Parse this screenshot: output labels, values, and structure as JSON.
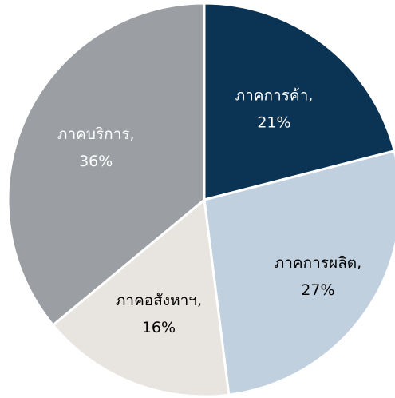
{
  "chart_data": {
    "type": "pie",
    "title": "",
    "slices": [
      {
        "label": "ภาคการค้า,",
        "percent_label": "21%",
        "value": 21,
        "color": "#0b3454",
        "text_color": "#ffffff"
      },
      {
        "label": "ภาคการผลิต,",
        "percent_label": "27%",
        "value": 27,
        "color": "#c1d0df",
        "text_color": "#000000"
      },
      {
        "label": "ภาคอสังหาฯ,",
        "percent_label": "16%",
        "value": 16,
        "color": "#e8e4df",
        "text_color": "#000000"
      },
      {
        "label": "ภาคบริการ,",
        "percent_label": "36%",
        "value": 36,
        "color": "#9b9fa3",
        "text_color": "#ffffff"
      }
    ],
    "start_angle": "12 o'clock",
    "direction": "clockwise",
    "slice_border_color": "#ffffff"
  }
}
